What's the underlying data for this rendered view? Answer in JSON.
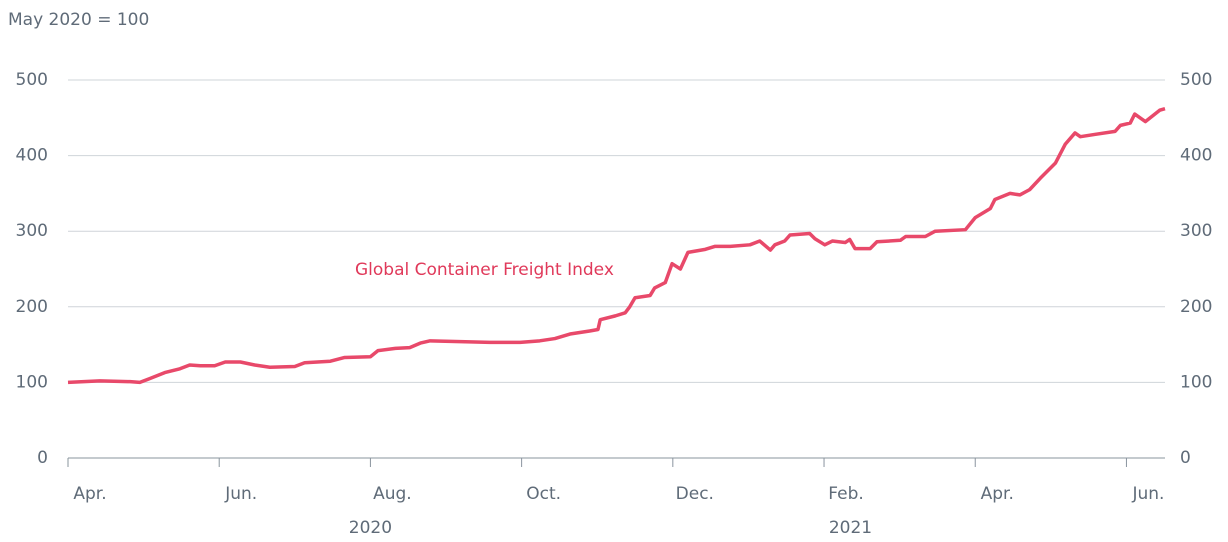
{
  "chart_data": {
    "type": "line",
    "subtitle": "May 2020 = 100",
    "annotation": "Global Container Freight Index",
    "x": [
      0,
      0.42,
      0.82,
      0.95,
      1.08,
      1.28,
      1.48,
      1.61,
      1.75,
      1.94,
      2.08,
      2.28,
      2.47,
      2.67,
      3.0,
      3.13,
      3.47,
      3.66,
      4.0,
      4.1,
      4.33,
      4.52,
      4.66,
      4.79,
      5.19,
      5.58,
      5.98,
      6.24,
      6.44,
      6.64,
      6.9,
      7.01,
      7.04,
      7.24,
      7.37,
      7.43,
      7.5,
      7.7,
      7.76,
      7.9,
      7.99,
      8.1,
      8.2,
      8.43,
      8.56,
      8.76,
      9.02,
      9.15,
      9.29,
      9.35,
      9.48,
      9.55,
      9.81,
      9.88,
      10.01,
      10.11,
      10.28,
      10.34,
      10.41,
      10.61,
      10.7,
      11.01,
      11.08,
      11.34,
      11.47,
      11.87,
      12.0,
      12.2,
      12.26,
      12.46,
      12.59,
      12.72,
      12.86,
      13.06,
      13.19,
      13.32,
      13.39,
      13.58,
      13.85,
      13.92,
      14.05,
      14.11,
      14.25,
      14.44,
      14.51
    ],
    "series": [
      {
        "name": "Global Container Freight Index",
        "color": "#e8496a",
        "values": [
          100,
          102,
          101,
          100,
          105,
          113,
          118,
          123,
          122,
          122,
          127,
          127,
          123,
          120,
          121,
          126,
          128,
          133,
          134,
          142,
          145,
          146,
          152,
          155,
          154,
          153,
          153,
          155,
          158,
          164,
          168,
          170,
          183,
          188,
          192,
          200,
          212,
          215,
          225,
          232,
          257,
          250,
          272,
          276,
          280,
          280,
          282,
          287,
          275,
          282,
          287,
          295,
          297,
          290,
          282,
          287,
          285,
          289,
          277,
          277,
          286,
          288,
          293,
          293,
          300,
          302,
          318,
          330,
          342,
          350,
          348,
          355,
          370,
          390,
          415,
          430,
          425,
          428,
          432,
          440,
          443,
          455,
          445,
          460,
          462
        ]
      }
    ],
    "xlim": [
      0,
      14.51
    ],
    "xticks": [
      {
        "value": 0,
        "label": "Apr."
      },
      {
        "value": 2,
        "label": "Jun."
      },
      {
        "value": 4,
        "label": "Aug."
      },
      {
        "value": 6,
        "label": "Oct."
      },
      {
        "value": 8,
        "label": "Dec."
      },
      {
        "value": 10,
        "label": "Feb."
      },
      {
        "value": 12,
        "label": "Apr."
      },
      {
        "value": 14,
        "label": "Jun."
      }
    ],
    "xgroups": [
      {
        "value": 4,
        "label": "2020"
      },
      {
        "value": 10.35,
        "label": "2021"
      }
    ],
    "ylim": [
      0,
      500
    ],
    "yticks": [
      0,
      100,
      200,
      300,
      400,
      500
    ],
    "grid": true
  }
}
